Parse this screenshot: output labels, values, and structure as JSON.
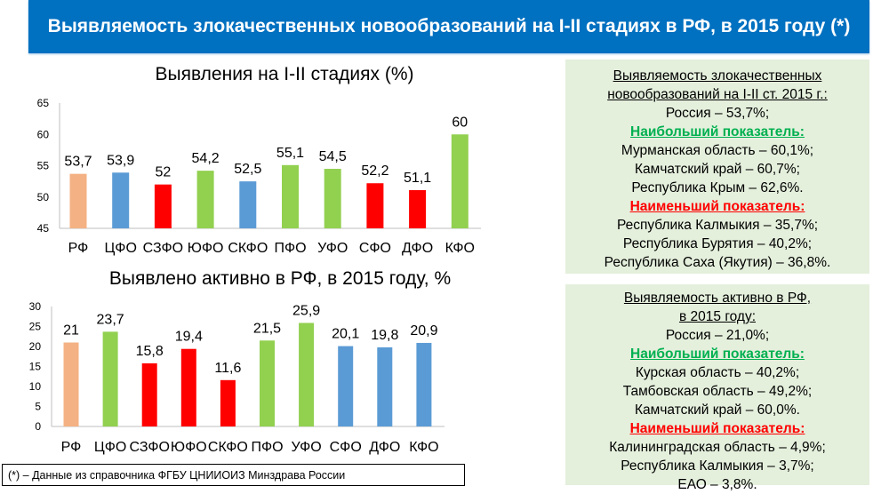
{
  "header": {
    "title": "Выявляемость злокачественных новообразований на I-II стадиях в РФ, в 2015 году (*)"
  },
  "chart_data": [
    {
      "type": "bar",
      "title": "Выявления на I-II стадиях (%)",
      "xlabel": "",
      "ylabel": "",
      "categories": [
        "РФ",
        "ЦФО",
        "СЗФО",
        "ЮФО",
        "СКФО",
        "ПФО",
        "УФО",
        "СФО",
        "ДФО",
        "КФО"
      ],
      "values": [
        53.7,
        53.9,
        52,
        54.2,
        52.5,
        55.1,
        54.5,
        52.2,
        51.1,
        60
      ],
      "labels": [
        "53,7",
        "53,9",
        "52",
        "54,2",
        "52,5",
        "55,1",
        "54,5",
        "52,2",
        "51,1",
        "60"
      ],
      "colors": [
        "#F4B183",
        "#5B9BD5",
        "#FF0000",
        "#92D050",
        "#5B9BD5",
        "#92D050",
        "#92D050",
        "#FF0000",
        "#FF0000",
        "#92D050"
      ],
      "ylim": [
        45,
        65
      ],
      "yticks": [
        "45",
        "50",
        "55",
        "60",
        "65"
      ],
      "grid": false
    },
    {
      "type": "bar",
      "title": "Выявлено активно в РФ, в 2015 году, %",
      "xlabel": "",
      "ylabel": "",
      "categories": [
        "РФ",
        "ЦФО",
        "СЗФО",
        "ЮФО",
        "СКФО",
        "ПФО",
        "УФО",
        "СФО",
        "ДФО",
        "КФО"
      ],
      "values": [
        21,
        23.7,
        15.8,
        19.4,
        11.6,
        21.5,
        25.9,
        20.1,
        19.8,
        20.9
      ],
      "labels": [
        "21",
        "23,7",
        "15,8",
        "19,4",
        "11,6",
        "21,5",
        "25,9",
        "20,1",
        "19,8",
        "20,9"
      ],
      "colors": [
        "#F4B183",
        "#92D050",
        "#FF0000",
        "#FF0000",
        "#FF0000",
        "#92D050",
        "#92D050",
        "#5B9BD5",
        "#5B9BD5",
        "#5B9BD5"
      ],
      "ylim": [
        0,
        30
      ],
      "yticks": [
        "0",
        "5",
        "10",
        "15",
        "20",
        "25",
        "30"
      ],
      "grid": false
    }
  ],
  "panel1": {
    "heading1": "Выявляемость злокачественных",
    "heading2": "новообразований на I-II ст. 2015 г.:",
    "russia": "Россия – 53,7%;",
    "best_label": "Наибольший показатель:",
    "best": [
      "Мурманская область – 60,1%;",
      "Камчатский край – 60,7%;",
      "Республика Крым – 62,6%."
    ],
    "worst_label": "Наименьший показатель:",
    "worst": [
      "Республика Калмыкия – 35,7%;",
      "Республика Бурятия – 40,2%;",
      "Республика Саха (Якутия) – 36,8%."
    ]
  },
  "panel2": {
    "heading1": "Выявляемость активно в РФ,",
    "heading2": "в  2015 году:",
    "russia": "Россия – 21,0%;",
    "best_label": "Наибольший показатель:",
    "best": [
      "Курская область – 40,2%;",
      "Тамбовская область – 49,2%;",
      "Камчатский край – 60,0%."
    ],
    "worst_label": "Наименьший показатель:",
    "worst": [
      "Калининградская область – 4,9%;",
      "Республика Калмыкия – 3,7%;",
      "ЕАО – 3,8%."
    ]
  },
  "footnote": "(*) – Данные из справочника ФГБУ ЦНИИОИЗ Минздрава России"
}
